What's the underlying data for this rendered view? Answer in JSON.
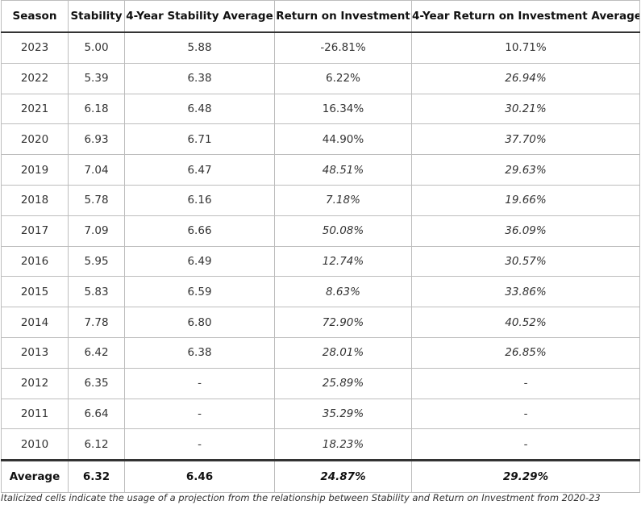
{
  "table": {
    "headers": [
      "Season",
      "Stability",
      "4-Year Stability Average",
      "Return on Investment",
      "4-Year Return on Investment Average"
    ],
    "rows": [
      {
        "season": "2023",
        "stability": "5.00",
        "stability_avg": "5.88",
        "roi": "-26.81%",
        "roi_projected": false,
        "roi_avg": "10.71%",
        "roi_avg_projected": false
      },
      {
        "season": "2022",
        "stability": "5.39",
        "stability_avg": "6.38",
        "roi": "6.22%",
        "roi_projected": false,
        "roi_avg": "26.94%",
        "roi_avg_projected": true
      },
      {
        "season": "2021",
        "stability": "6.18",
        "stability_avg": "6.48",
        "roi": "16.34%",
        "roi_projected": false,
        "roi_avg": "30.21%",
        "roi_avg_projected": true
      },
      {
        "season": "2020",
        "stability": "6.93",
        "stability_avg": "6.71",
        "roi": "44.90%",
        "roi_projected": false,
        "roi_avg": "37.70%",
        "roi_avg_projected": true
      },
      {
        "season": "2019",
        "stability": "7.04",
        "stability_avg": "6.47",
        "roi": "48.51%",
        "roi_projected": true,
        "roi_avg": "29.63%",
        "roi_avg_projected": true
      },
      {
        "season": "2018",
        "stability": "5.78",
        "stability_avg": "6.16",
        "roi": "7.18%",
        "roi_projected": true,
        "roi_avg": "19.66%",
        "roi_avg_projected": true
      },
      {
        "season": "2017",
        "stability": "7.09",
        "stability_avg": "6.66",
        "roi": "50.08%",
        "roi_projected": true,
        "roi_avg": "36.09%",
        "roi_avg_projected": true
      },
      {
        "season": "2016",
        "stability": "5.95",
        "stability_avg": "6.49",
        "roi": "12.74%",
        "roi_projected": true,
        "roi_avg": "30.57%",
        "roi_avg_projected": true
      },
      {
        "season": "2015",
        "stability": "5.83",
        "stability_avg": "6.59",
        "roi": "8.63%",
        "roi_projected": true,
        "roi_avg": "33.86%",
        "roi_avg_projected": true
      },
      {
        "season": "2014",
        "stability": "7.78",
        "stability_avg": "6.80",
        "roi": "72.90%",
        "roi_projected": true,
        "roi_avg": "40.52%",
        "roi_avg_projected": true
      },
      {
        "season": "2013",
        "stability": "6.42",
        "stability_avg": "6.38",
        "roi": "28.01%",
        "roi_projected": true,
        "roi_avg": "26.85%",
        "roi_avg_projected": true
      },
      {
        "season": "2012",
        "stability": "6.35",
        "stability_avg": "-",
        "roi": "25.89%",
        "roi_projected": true,
        "roi_avg": "-",
        "roi_avg_projected": false
      },
      {
        "season": "2011",
        "stability": "6.64",
        "stability_avg": "-",
        "roi": "35.29%",
        "roi_projected": true,
        "roi_avg": "-",
        "roi_avg_projected": false
      },
      {
        "season": "2010",
        "stability": "6.12",
        "stability_avg": "-",
        "roi": "18.23%",
        "roi_projected": true,
        "roi_avg": "-",
        "roi_avg_projected": false
      }
    ],
    "footer": {
      "label": "Average",
      "stability": "6.32",
      "stability_avg": "6.46",
      "roi": "24.87%",
      "roi_projected": true,
      "roi_avg": "29.29%",
      "roi_avg_projected": true
    }
  },
  "footnote": "Italicized cells indicate the usage of a projection from the relationship between Stability and Return on Investment from 2020-23"
}
